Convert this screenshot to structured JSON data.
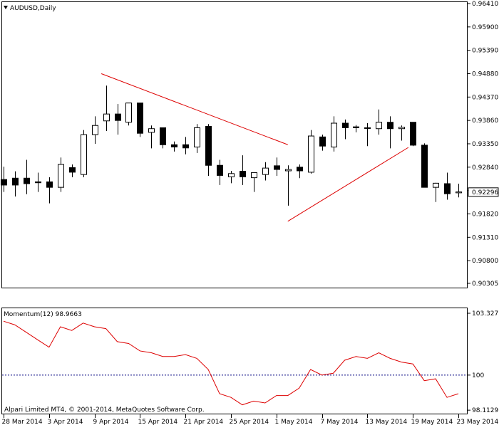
{
  "chart_data": [
    {
      "type": "candlestick",
      "title": "AUDUSD,Daily",
      "ylim": [
        0.90305,
        0.9641
      ],
      "ytick_labels": [
        "0.96410",
        "0.95900",
        "0.95390",
        "0.94880",
        "0.94370",
        "0.93860",
        "0.93350",
        "0.92840",
        "0.92330",
        "0.91820",
        "0.91310",
        "0.90800",
        "0.90305"
      ],
      "yticks": [
        0.9641,
        0.959,
        0.9539,
        0.9488,
        0.9437,
        0.9386,
        0.9335,
        0.9284,
        0.9233,
        0.9182,
        0.9131,
        0.908,
        0.90305
      ],
      "current_price_label": "0.92296",
      "current_price": 0.92296,
      "candles": [
        {
          "o": 0.9257,
          "h": 0.9285,
          "l": 0.923,
          "c": 0.9245
        },
        {
          "o": 0.926,
          "h": 0.9275,
          "l": 0.922,
          "c": 0.9245
        },
        {
          "o": 0.926,
          "h": 0.93,
          "l": 0.9225,
          "c": 0.9248
        },
        {
          "o": 0.9252,
          "h": 0.9272,
          "l": 0.923,
          "c": 0.925
        },
        {
          "o": 0.9252,
          "h": 0.9262,
          "l": 0.9205,
          "c": 0.924
        },
        {
          "o": 0.924,
          "h": 0.9305,
          "l": 0.923,
          "c": 0.929
        },
        {
          "o": 0.9283,
          "h": 0.929,
          "l": 0.9262,
          "c": 0.9273
        },
        {
          "o": 0.9268,
          "h": 0.9365,
          "l": 0.9262,
          "c": 0.9355
        },
        {
          "o": 0.9355,
          "h": 0.9395,
          "l": 0.9335,
          "c": 0.9375
        },
        {
          "o": 0.9385,
          "h": 0.9462,
          "l": 0.9363,
          "c": 0.94
        },
        {
          "o": 0.94,
          "h": 0.9422,
          "l": 0.9355,
          "c": 0.9386
        },
        {
          "o": 0.9382,
          "h": 0.9422,
          "l": 0.9375,
          "c": 0.9424
        },
        {
          "o": 0.9424,
          "h": 0.9424,
          "l": 0.935,
          "c": 0.9358
        },
        {
          "o": 0.936,
          "h": 0.9375,
          "l": 0.9325,
          "c": 0.9368
        },
        {
          "o": 0.937,
          "h": 0.937,
          "l": 0.9325,
          "c": 0.9333
        },
        {
          "o": 0.9333,
          "h": 0.934,
          "l": 0.9318,
          "c": 0.9328
        },
        {
          "o": 0.9333,
          "h": 0.935,
          "l": 0.9312,
          "c": 0.9326
        },
        {
          "o": 0.9328,
          "h": 0.9378,
          "l": 0.9315,
          "c": 0.937
        },
        {
          "o": 0.9373,
          "h": 0.9378,
          "l": 0.9265,
          "c": 0.9288
        },
        {
          "o": 0.9288,
          "h": 0.93,
          "l": 0.9245,
          "c": 0.9266
        },
        {
          "o": 0.9263,
          "h": 0.9276,
          "l": 0.9249,
          "c": 0.927
        },
        {
          "o": 0.9275,
          "h": 0.931,
          "l": 0.9245,
          "c": 0.9263
        },
        {
          "o": 0.9261,
          "h": 0.9272,
          "l": 0.923,
          "c": 0.9272
        },
        {
          "o": 0.9268,
          "h": 0.9295,
          "l": 0.9255,
          "c": 0.9282
        },
        {
          "o": 0.9287,
          "h": 0.9305,
          "l": 0.9265,
          "c": 0.9279
        },
        {
          "o": 0.9276,
          "h": 0.9288,
          "l": 0.92,
          "c": 0.9279
        },
        {
          "o": 0.9284,
          "h": 0.929,
          "l": 0.926,
          "c": 0.9276
        },
        {
          "o": 0.9273,
          "h": 0.9365,
          "l": 0.927,
          "c": 0.9352
        },
        {
          "o": 0.935,
          "h": 0.9355,
          "l": 0.932,
          "c": 0.933
        },
        {
          "o": 0.9328,
          "h": 0.9395,
          "l": 0.9318,
          "c": 0.938
        },
        {
          "o": 0.938,
          "h": 0.9388,
          "l": 0.9345,
          "c": 0.937
        },
        {
          "o": 0.9372,
          "h": 0.9376,
          "l": 0.936,
          "c": 0.937
        },
        {
          "o": 0.937,
          "h": 0.938,
          "l": 0.933,
          "c": 0.937
        },
        {
          "o": 0.9368,
          "h": 0.941,
          "l": 0.9355,
          "c": 0.9382
        },
        {
          "o": 0.9382,
          "h": 0.9395,
          "l": 0.9325,
          "c": 0.9368
        },
        {
          "o": 0.9368,
          "h": 0.9375,
          "l": 0.9342,
          "c": 0.9371
        },
        {
          "o": 0.9382,
          "h": 0.9382,
          "l": 0.933,
          "c": 0.9332
        },
        {
          "o": 0.9332,
          "h": 0.9336,
          "l": 0.924,
          "c": 0.924
        },
        {
          "o": 0.924,
          "h": 0.925,
          "l": 0.9208,
          "c": 0.9249
        },
        {
          "o": 0.9248,
          "h": 0.9272,
          "l": 0.9213,
          "c": 0.9226
        },
        {
          "o": 0.9228,
          "h": 0.9248,
          "l": 0.9218,
          "c": 0.923
        }
      ],
      "trendlines": [
        {
          "from": {
            "i": 8.6,
            "y": 0.9488
          },
          "to": {
            "i": 25.0,
            "y": 0.9333
          },
          "color": "#dd0000"
        },
        {
          "from": {
            "i": 25.0,
            "y": 0.9166
          },
          "to": {
            "i": 35.6,
            "y": 0.9327
          },
          "color": "#dd0000"
        }
      ]
    },
    {
      "type": "line",
      "title": "Momentum(12) 98.9663",
      "ylim": [
        98.08,
        103.3277
      ],
      "ytick_labels": [
        "103.3277",
        "100",
        "98.1129"
      ],
      "yticks": [
        103.3277,
        100,
        98.1129
      ],
      "reference_line": 100,
      "series": [
        {
          "color": "#dd0000",
          "values": [
            102.9,
            102.7,
            102.3,
            101.9,
            101.5,
            102.6,
            102.4,
            102.8,
            102.6,
            102.5,
            101.8,
            101.7,
            101.3,
            101.2,
            101.0,
            101.0,
            101.1,
            100.9,
            100.3,
            99.0,
            98.8,
            98.4,
            98.6,
            98.5,
            98.9,
            98.9,
            99.3,
            100.3,
            100.0,
            100.1,
            100.8,
            101.0,
            100.9,
            101.2,
            100.9,
            100.7,
            100.6,
            99.7,
            99.8,
            98.8,
            99.0
          ]
        }
      ]
    }
  ],
  "x_axis": {
    "labels": [
      "28 Mar 2014",
      "3 Apr 2014",
      "9 Apr 2014",
      "15 Apr 2014",
      "21 Apr 2014",
      "25 Apr 2014",
      "1 May 2014",
      "7 May 2014",
      "13 May 2014",
      "19 May 2014",
      "23 May 2014"
    ],
    "label_index": [
      0,
      4,
      8,
      12,
      16,
      20,
      24,
      28,
      32,
      36,
      40
    ]
  },
  "footer": {
    "copyright": "Alpari Limited MT4, © 2001-2014, MetaQuotes Software Corp."
  },
  "colors": {
    "background": "#ffffff",
    "axis": "#000000",
    "bull_body": "#ffffff",
    "bear_body": "#000000",
    "indicator": "#dd0000",
    "trendline": "#dd0000",
    "reference_line": "#000080"
  },
  "icons": {
    "title_marker": "triangle-down-icon"
  }
}
